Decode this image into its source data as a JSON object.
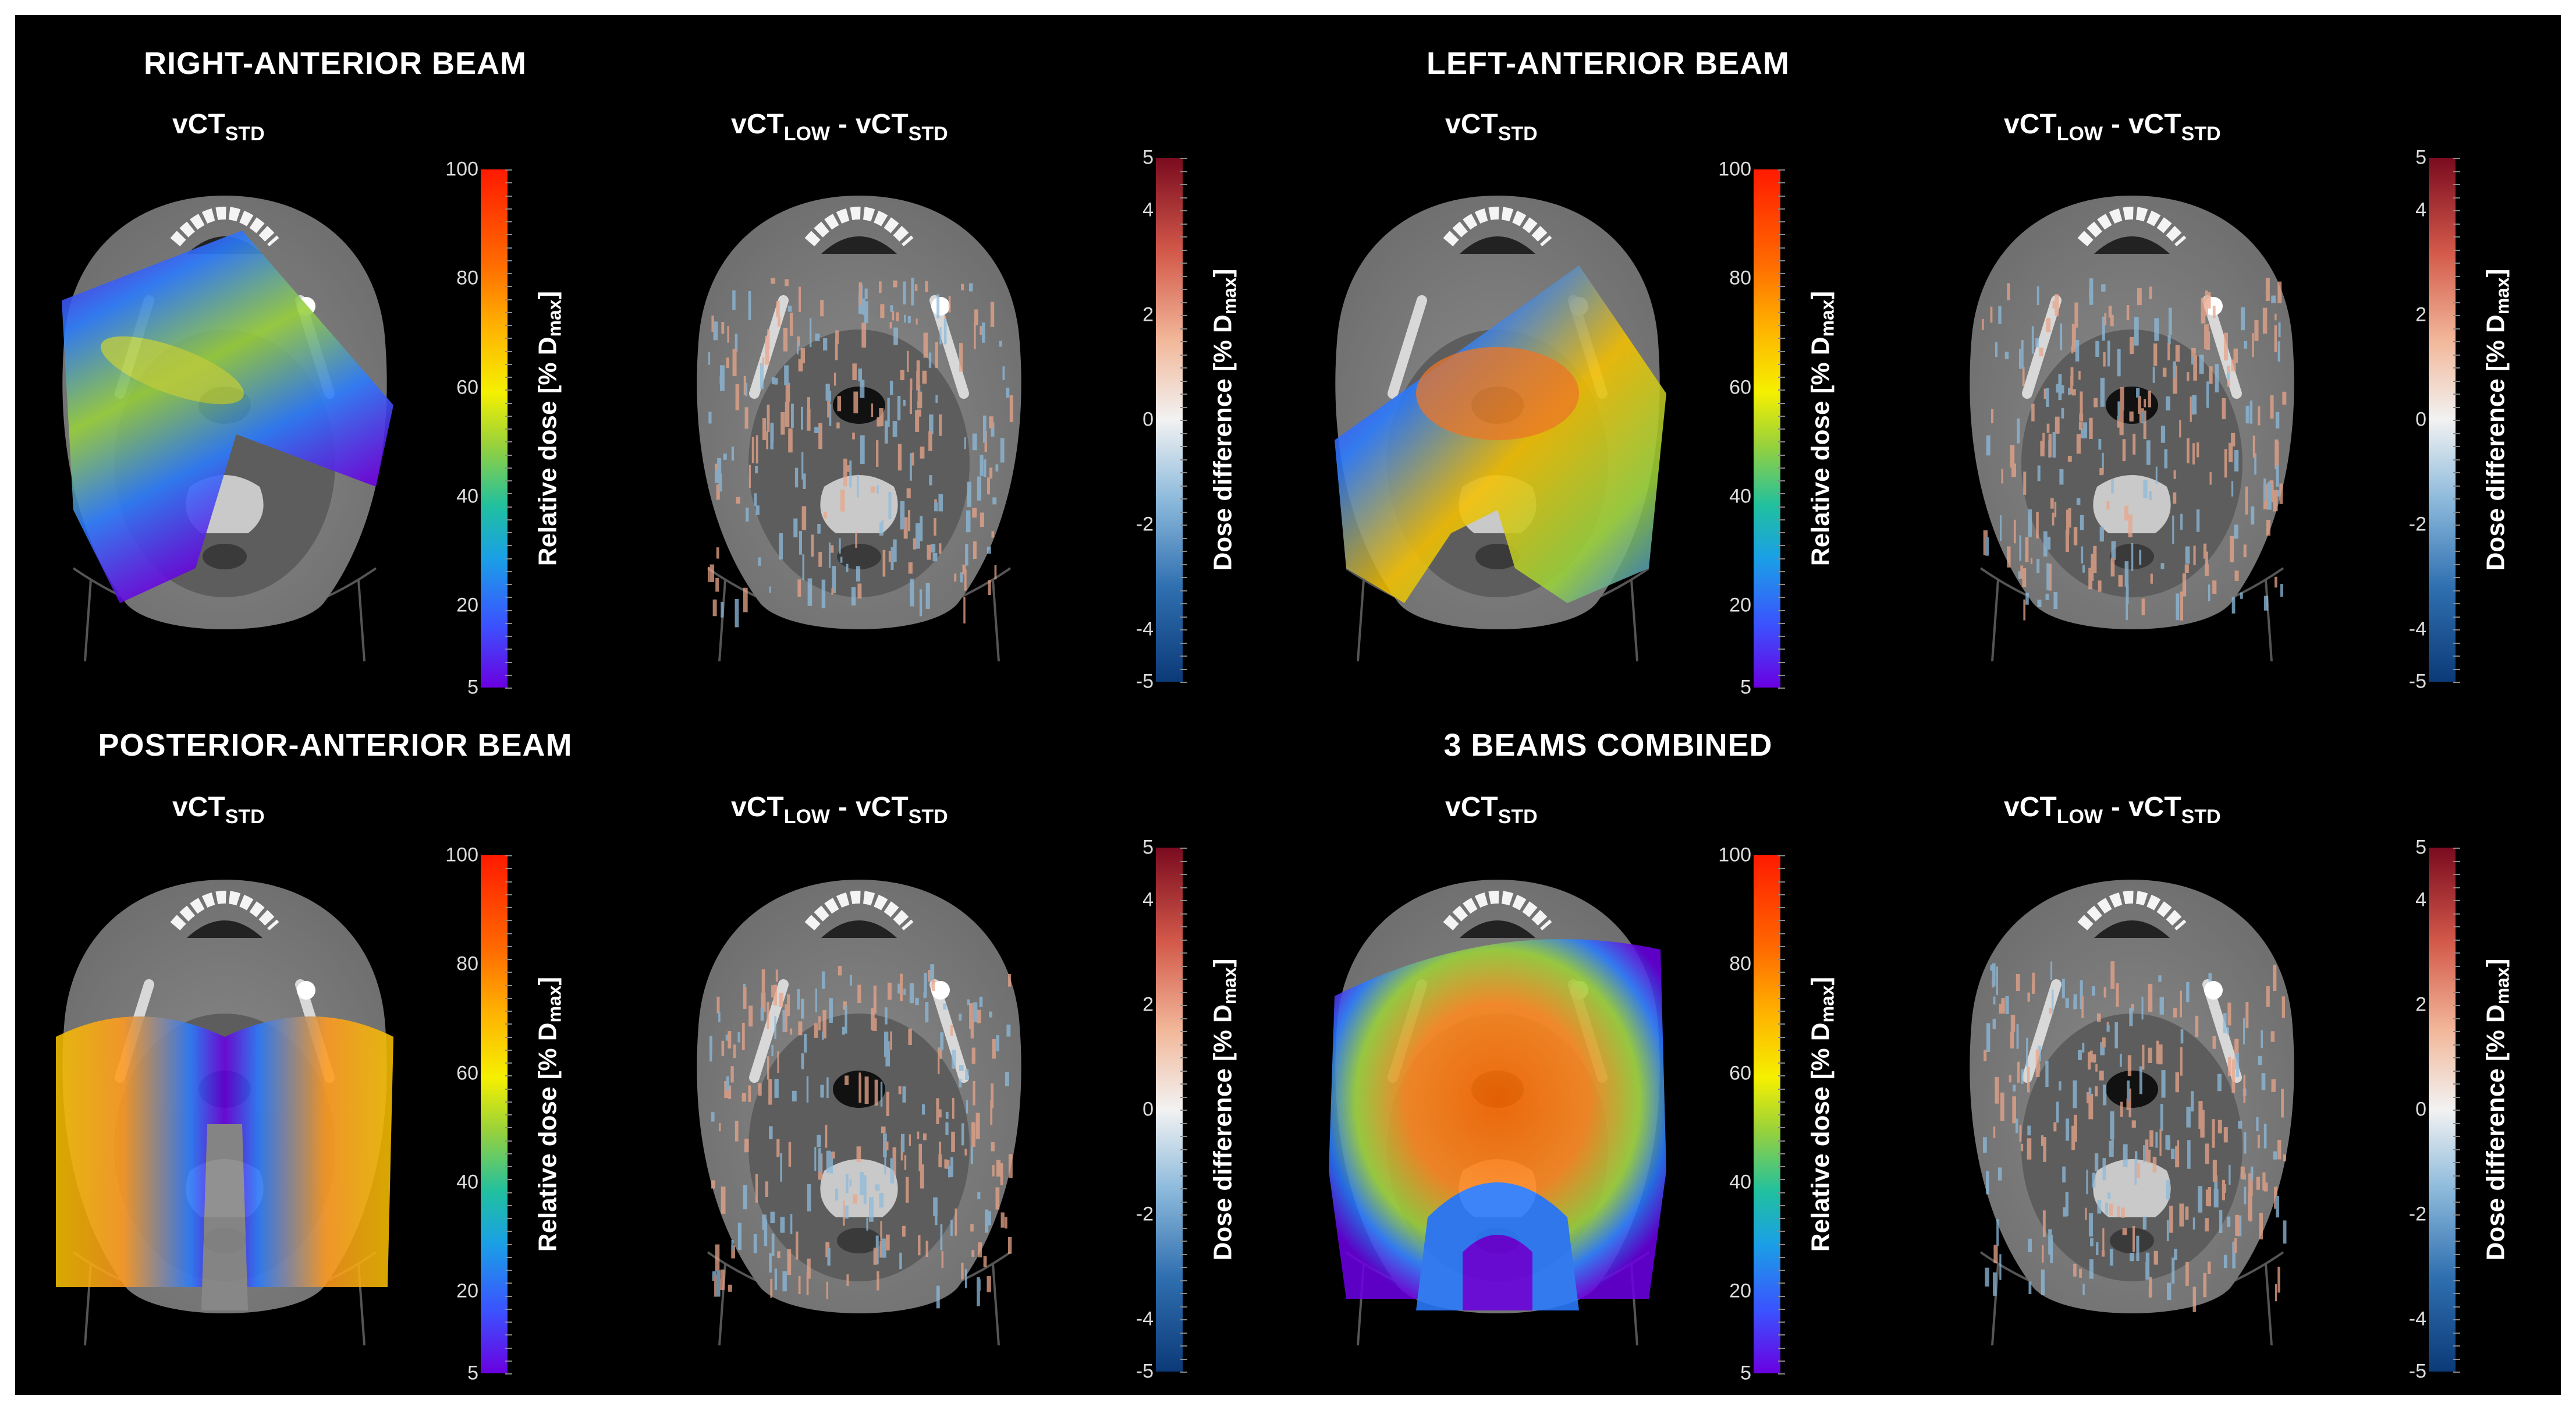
{
  "quadrants": [
    {
      "id": "right-anterior",
      "title": "RIGHT-ANTERIOR BEAM",
      "dose_panel": {
        "label_main": "vCT",
        "label_sub": "STD"
      },
      "diff_panel": {
        "a_main": "vCT",
        "a_sub": "LOW",
        "sep": "-",
        "b_main": "vCT",
        "b_sub": "STD"
      },
      "beam": "right-anterior"
    },
    {
      "id": "left-anterior",
      "title": "LEFT-ANTERIOR BEAM",
      "dose_panel": {
        "label_main": "vCT",
        "label_sub": "STD"
      },
      "diff_panel": {
        "a_main": "vCT",
        "a_sub": "LOW",
        "sep": "-",
        "b_main": "vCT",
        "b_sub": "STD"
      },
      "beam": "left-anterior"
    },
    {
      "id": "posterior-anterior",
      "title": "POSTERIOR-ANTERIOR BEAM",
      "dose_panel": {
        "label_main": "vCT",
        "label_sub": "STD"
      },
      "diff_panel": {
        "a_main": "vCT",
        "a_sub": "LOW",
        "sep": "-",
        "b_main": "vCT",
        "b_sub": "STD"
      },
      "beam": "posterior-anterior"
    },
    {
      "id": "combined",
      "title": "3 BEAMS COMBINED",
      "dose_panel": {
        "label_main": "vCT",
        "label_sub": "STD"
      },
      "diff_panel": {
        "a_main": "vCT",
        "a_sub": "LOW",
        "sep": "-",
        "b_main": "vCT",
        "b_sub": "STD"
      },
      "beam": "combined"
    }
  ],
  "dose_colorbar": {
    "label": "Relative dose [% D",
    "label_sub": "max",
    "label_end": "]",
    "ticks": [
      "100",
      "80",
      "60",
      "40",
      "20",
      "5"
    ],
    "tick_values": [
      100,
      80,
      60,
      40,
      20,
      5
    ],
    "range": [
      5,
      100
    ],
    "colors": [
      "#6a00e0",
      "#3b52ff",
      "#1aa0e6",
      "#20c0a0",
      "#9ad23a",
      "#f5f000",
      "#ffb000",
      "#ff6a00",
      "#ff1a00"
    ]
  },
  "diff_colorbar": {
    "label": "Dose difference [% D",
    "label_sub": "max",
    "label_end": "]",
    "ticks": [
      "5",
      "4",
      "2",
      "0",
      "-2",
      "-4",
      "-5"
    ],
    "tick_values": [
      5,
      4,
      2,
      0,
      -2,
      -4,
      -5
    ],
    "range": [
      -5,
      5
    ],
    "colors": [
      "#0c3a78",
      "#2f6fb0",
      "#8ebbdc",
      "#f2f2f2",
      "#f2b89a",
      "#d3594a",
      "#7a0b1f"
    ]
  }
}
